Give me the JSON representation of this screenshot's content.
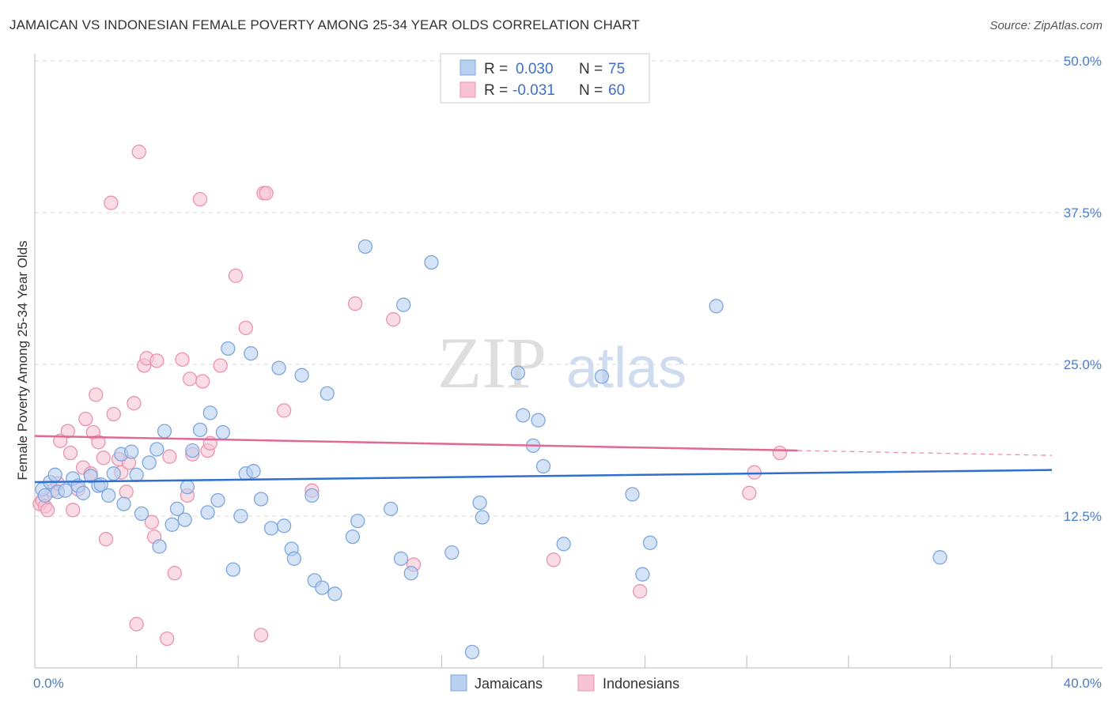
{
  "header": {
    "title": "JAMAICAN VS INDONESIAN FEMALE POVERTY AMONG 25-34 YEAR OLDS CORRELATION CHART",
    "source": "Source: ZipAtlas.com"
  },
  "watermark": {
    "part1": "ZIP",
    "part2": "atlas"
  },
  "legend": {
    "rows": [
      {
        "r_label": "R = ",
        "r_value": "0.030",
        "n_label": "N = ",
        "n_value": "75"
      },
      {
        "r_label": "R = ",
        "r_value": "-0.031",
        "n_label": "N = ",
        "n_value": "60"
      }
    ]
  },
  "bottom_legend": {
    "items": [
      "Jamaicans",
      "Indonesians"
    ]
  },
  "colors": {
    "blue_fill": "#b9d0f0",
    "blue_stroke": "#7fa6dc",
    "blue_line": "#2f6fcf",
    "pink_fill": "#f7c4d4",
    "pink_stroke": "#ea93b0",
    "pink_line": "#e06a95",
    "grid": "#d8d8d8",
    "tick_label": "#4a7cc7"
  },
  "chart_data": {
    "type": "scatter",
    "title": "JAMAICAN VS INDONESIAN FEMALE POVERTY AMONG 25-34 YEAR OLDS CORRELATION CHART",
    "xlabel": "",
    "ylabel": "Female Poverty Among 25-34 Year Olds",
    "xlim": [
      0,
      40
    ],
    "ylim": [
      0,
      50
    ],
    "x_tick_labels": [
      "0.0%",
      "40.0%"
    ],
    "y_ticks": [
      12.5,
      25.0,
      37.5,
      50.0
    ],
    "y_tick_labels": [
      "12.5%",
      "25.0%",
      "37.5%",
      "50.0%"
    ],
    "grid": true,
    "legend_position": "top-center",
    "series": [
      {
        "name": "Jamaicans",
        "r": 0.03,
        "n": 75,
        "trend": {
          "x": [
            0,
            40
          ],
          "y": [
            15.3,
            16.3
          ]
        },
        "points": [
          [
            0.3,
            14.7
          ],
          [
            0.4,
            14.2
          ],
          [
            0.6,
            15.3
          ],
          [
            0.8,
            15.9
          ],
          [
            0.9,
            14.5
          ],
          [
            1.2,
            14.6
          ],
          [
            1.5,
            15.6
          ],
          [
            1.7,
            15.0
          ],
          [
            1.9,
            14.4
          ],
          [
            2.2,
            15.8
          ],
          [
            2.5,
            15.0
          ],
          [
            2.6,
            15.1
          ],
          [
            2.9,
            14.2
          ],
          [
            3.1,
            16.0
          ],
          [
            3.4,
            17.6
          ],
          [
            3.5,
            13.5
          ],
          [
            3.8,
            17.8
          ],
          [
            4.0,
            15.9
          ],
          [
            4.2,
            12.7
          ],
          [
            4.5,
            16.9
          ],
          [
            4.8,
            18.0
          ],
          [
            4.9,
            10.0
          ],
          [
            5.1,
            19.5
          ],
          [
            5.4,
            11.8
          ],
          [
            5.6,
            13.1
          ],
          [
            5.9,
            12.2
          ],
          [
            6.0,
            14.9
          ],
          [
            6.2,
            17.9
          ],
          [
            6.5,
            19.6
          ],
          [
            6.8,
            12.8
          ],
          [
            6.9,
            21.0
          ],
          [
            7.2,
            13.8
          ],
          [
            7.4,
            19.4
          ],
          [
            7.6,
            26.3
          ],
          [
            7.8,
            8.1
          ],
          [
            8.1,
            12.5
          ],
          [
            8.3,
            16.0
          ],
          [
            8.5,
            25.9
          ],
          [
            8.6,
            16.2
          ],
          [
            8.9,
            13.9
          ],
          [
            9.3,
            11.5
          ],
          [
            9.6,
            24.7
          ],
          [
            9.8,
            11.7
          ],
          [
            10.1,
            9.8
          ],
          [
            10.2,
            9.0
          ],
          [
            10.5,
            24.1
          ],
          [
            10.9,
            14.2
          ],
          [
            11.0,
            7.2
          ],
          [
            11.3,
            6.6
          ],
          [
            11.5,
            22.6
          ],
          [
            11.8,
            6.1
          ],
          [
            12.5,
            10.8
          ],
          [
            12.7,
            12.1
          ],
          [
            13.0,
            34.7
          ],
          [
            14.0,
            13.1
          ],
          [
            14.4,
            9.0
          ],
          [
            14.5,
            29.9
          ],
          [
            14.8,
            7.8
          ],
          [
            15.6,
            33.4
          ],
          [
            16.4,
            9.5
          ],
          [
            17.2,
            1.3
          ],
          [
            17.5,
            13.6
          ],
          [
            17.6,
            12.4
          ],
          [
            19.0,
            24.3
          ],
          [
            19.2,
            20.8
          ],
          [
            19.6,
            18.3
          ],
          [
            19.8,
            20.4
          ],
          [
            20.0,
            16.6
          ],
          [
            20.8,
            10.2
          ],
          [
            22.3,
            24.0
          ],
          [
            23.5,
            14.3
          ],
          [
            23.9,
            7.7
          ],
          [
            24.2,
            10.3
          ],
          [
            26.8,
            29.8
          ],
          [
            35.6,
            9.1
          ]
        ]
      },
      {
        "name": "Indonesians",
        "r": -0.031,
        "n": 60,
        "trend": {
          "x": [
            0,
            30
          ],
          "y": [
            19.1,
            17.9
          ]
        },
        "trend_dashed": {
          "x": [
            30,
            40
          ],
          "y": [
            17.9,
            17.5
          ]
        },
        "points": [
          [
            0.2,
            13.5
          ],
          [
            0.3,
            13.8
          ],
          [
            0.4,
            13.3
          ],
          [
            0.5,
            13.0
          ],
          [
            0.7,
            14.6
          ],
          [
            0.9,
            15.2
          ],
          [
            1.0,
            18.7
          ],
          [
            1.3,
            19.5
          ],
          [
            1.4,
            17.7
          ],
          [
            1.5,
            13.0
          ],
          [
            1.7,
            14.7
          ],
          [
            1.9,
            16.5
          ],
          [
            2.0,
            20.5
          ],
          [
            2.2,
            16.0
          ],
          [
            2.3,
            19.4
          ],
          [
            2.4,
            22.5
          ],
          [
            2.5,
            18.6
          ],
          [
            2.7,
            17.3
          ],
          [
            2.8,
            10.6
          ],
          [
            3.0,
            38.3
          ],
          [
            3.1,
            20.9
          ],
          [
            3.3,
            17.2
          ],
          [
            3.4,
            16.1
          ],
          [
            3.6,
            14.5
          ],
          [
            3.7,
            16.9
          ],
          [
            3.9,
            21.8
          ],
          [
            4.0,
            3.6
          ],
          [
            4.1,
            42.5
          ],
          [
            4.3,
            24.9
          ],
          [
            4.4,
            25.5
          ],
          [
            4.6,
            12.0
          ],
          [
            4.7,
            10.8
          ],
          [
            4.8,
            25.3
          ],
          [
            5.2,
            2.4
          ],
          [
            5.3,
            17.4
          ],
          [
            5.5,
            7.8
          ],
          [
            5.8,
            25.4
          ],
          [
            6.0,
            14.2
          ],
          [
            6.1,
            23.8
          ],
          [
            6.2,
            17.6
          ],
          [
            6.5,
            38.6
          ],
          [
            6.6,
            23.6
          ],
          [
            6.8,
            17.9
          ],
          [
            6.9,
            18.5
          ],
          [
            7.3,
            24.9
          ],
          [
            7.9,
            32.3
          ],
          [
            8.3,
            28.0
          ],
          [
            8.9,
            2.7
          ],
          [
            9.0,
            39.1
          ],
          [
            9.1,
            39.1
          ],
          [
            9.8,
            21.2
          ],
          [
            10.9,
            14.6
          ],
          [
            12.6,
            30.0
          ],
          [
            14.1,
            28.7
          ],
          [
            14.9,
            8.5
          ],
          [
            20.4,
            8.9
          ],
          [
            23.8,
            6.3
          ],
          [
            28.1,
            14.4
          ],
          [
            28.3,
            16.1
          ],
          [
            29.3,
            17.7
          ]
        ]
      }
    ]
  }
}
